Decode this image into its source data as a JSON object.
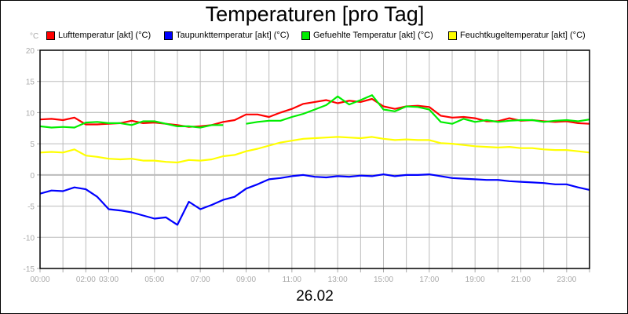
{
  "chart_data": {
    "type": "line",
    "title": "Temperaturen [pro Tag]",
    "xlabel": "26.02",
    "ylabel": "°C",
    "ylim": [
      -15,
      20
    ],
    "xlim_hours": [
      0,
      24
    ],
    "yticks": [
      20,
      15,
      10,
      5,
      0,
      -5,
      -10,
      -15
    ],
    "xtick_labels": [
      {
        "h": 0,
        "label": "00:00"
      },
      {
        "h": 2,
        "label": "02:00"
      },
      {
        "h": 3,
        "label": "03:00"
      },
      {
        "h": 5,
        "label": "05:00"
      },
      {
        "h": 7,
        "label": "07:00"
      },
      {
        "h": 9,
        "label": "09:00"
      },
      {
        "h": 11,
        "label": "11:00"
      },
      {
        "h": 13,
        "label": "13:00"
      },
      {
        "h": 15,
        "label": "15:00"
      },
      {
        "h": 17,
        "label": "17:00"
      },
      {
        "h": 19,
        "label": "19:00"
      },
      {
        "h": 21,
        "label": "21:00"
      },
      {
        "h": 23,
        "label": "23:00"
      }
    ],
    "grid": true,
    "legend_position": "top",
    "x_hours_step": 0.5,
    "series": [
      {
        "name": "Lufttemperatur [akt] (°C)",
        "color": "#ff0000",
        "values": [
          8.9,
          9.0,
          8.8,
          9.2,
          8.1,
          8.1,
          8.2,
          8.3,
          8.7,
          8.3,
          8.4,
          8.2,
          8.0,
          7.7,
          7.8,
          8.0,
          8.5,
          8.8,
          9.7,
          9.7,
          9.3,
          10.0,
          10.6,
          11.4,
          11.7,
          12.0,
          11.5,
          11.9,
          11.7,
          12.2,
          11.0,
          10.6,
          11.0,
          11.1,
          10.9,
          9.5,
          9.2,
          9.3,
          9.1,
          8.6,
          8.6,
          9.1,
          8.7,
          8.8,
          8.6,
          8.5,
          8.6,
          8.3,
          8.2
        ]
      },
      {
        "name": "Taupunkttemperatur [akt] (°C)",
        "color": "#0000ff",
        "values": [
          -3.0,
          -2.5,
          -2.6,
          -2.0,
          -2.3,
          -3.5,
          -5.5,
          -5.7,
          -6.0,
          -6.5,
          -7.0,
          -6.8,
          -8.0,
          -4.3,
          -5.5,
          -4.8,
          -4.0,
          -3.5,
          -2.2,
          -1.5,
          -0.7,
          -0.5,
          -0.2,
          0.0,
          -0.3,
          -0.4,
          -0.2,
          -0.3,
          -0.1,
          -0.2,
          0.1,
          -0.2,
          0.0,
          0.0,
          0.1,
          -0.2,
          -0.5,
          -0.6,
          -0.7,
          -0.8,
          -0.8,
          -1.0,
          -1.1,
          -1.2,
          -1.3,
          -1.5,
          -1.5,
          -2.0,
          -2.4
        ]
      },
      {
        "name": "Gefuehlte Temperatur [akt] (°C)",
        "color": "#00ee00",
        "values": [
          7.8,
          7.6,
          7.7,
          7.6,
          8.4,
          8.5,
          8.3,
          8.3,
          8.0,
          8.6,
          8.6,
          8.2,
          7.8,
          7.8,
          7.6,
          8.0,
          8.0,
          null,
          8.2,
          8.5,
          8.7,
          8.7,
          9.3,
          9.8,
          10.5,
          11.2,
          12.6,
          11.3,
          12.0,
          12.8,
          10.5,
          10.2,
          11.0,
          10.9,
          10.5,
          8.5,
          8.2,
          9.0,
          8.5,
          8.8,
          8.5,
          8.7,
          8.8,
          8.8,
          8.5,
          8.7,
          8.8,
          8.6,
          8.9
        ]
      },
      {
        "name": "Feuchtkugeltemperatur [akt] (°C)",
        "color": "#ffff00",
        "values": [
          3.6,
          3.7,
          3.6,
          4.1,
          3.1,
          2.9,
          2.6,
          2.5,
          2.6,
          2.3,
          2.3,
          2.1,
          2.0,
          2.4,
          2.3,
          2.5,
          3.0,
          3.2,
          3.8,
          4.2,
          4.7,
          5.2,
          5.5,
          5.8,
          5.9,
          6.0,
          6.1,
          6.0,
          5.9,
          6.1,
          5.8,
          5.6,
          5.7,
          5.6,
          5.6,
          5.1,
          5.0,
          4.8,
          4.6,
          4.5,
          4.4,
          4.5,
          4.3,
          4.3,
          4.1,
          4.0,
          4.0,
          3.8,
          3.6
        ]
      }
    ]
  }
}
